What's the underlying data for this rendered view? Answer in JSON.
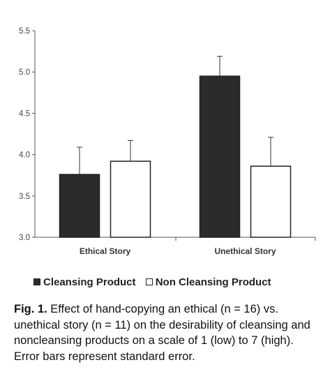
{
  "chart_data": {
    "type": "bar",
    "categories": [
      "Ethical Story",
      "Unethical Story"
    ],
    "series": [
      {
        "name": "Cleansing Product",
        "values": [
          3.76,
          4.95
        ],
        "errors": [
          0.33,
          0.24
        ],
        "color": "#2b2b2b"
      },
      {
        "name": "Non Cleansing Product",
        "values": [
          3.92,
          3.86
        ],
        "errors": [
          0.25,
          0.35
        ],
        "color": "#ffffff"
      }
    ],
    "ylim": [
      3.0,
      5.5
    ],
    "yticks": [
      "3.0",
      "3.5",
      "4.0",
      "4.5",
      "5.0",
      "5.5"
    ],
    "error_bars": "standard error",
    "legend_position": "bottom"
  },
  "legend": {
    "items": [
      {
        "label": "Cleansing Product"
      },
      {
        "label": "Non Cleansing Product"
      }
    ]
  },
  "caption": {
    "label": "Fig. 1.",
    "text": " Effect of hand-copying an ethical (n = 16) vs. unethical story (n = 11) on the desirability of cleansing and noncleansing products on a scale of 1 (low) to 7 (high). Error bars represent standard error."
  }
}
